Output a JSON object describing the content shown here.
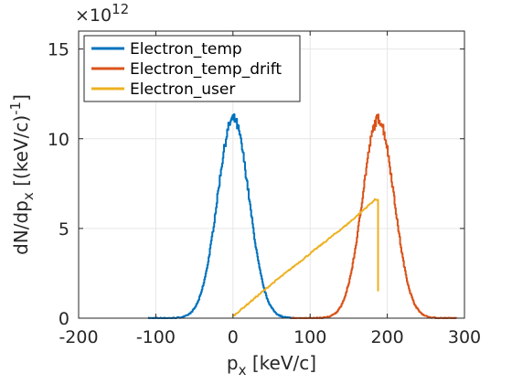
{
  "chart_data": {
    "type": "line",
    "xlabel_main": "p",
    "xlabel_sub": "x",
    "xlabel_rest": " [keV/c]",
    "ylabel_main": "dN/dp",
    "ylabel_sub": "x",
    "ylabel_rest": " [(keV/c)",
    "ylabel_sup": "-1",
    "ylabel_close": "]",
    "y_exponent_base": "×10",
    "y_exponent_power": "12",
    "xlim": [
      -200,
      300
    ],
    "ylim": [
      0,
      16
    ],
    "y_scale": 1000000000000.0,
    "xticks": [
      -200,
      -100,
      0,
      100,
      200,
      300
    ],
    "yticks": [
      0,
      5,
      10,
      15
    ],
    "grid": true,
    "legend_position": "top-left",
    "series": [
      {
        "name": "Electron_temp",
        "color": "#0072BD",
        "shape": "gaussian",
        "mean": 0,
        "sigma": 20.5,
        "peak": 11.1,
        "x_range": [
          -110,
          80
        ]
      },
      {
        "name": "Electron_temp_drift",
        "color": "#D95319",
        "shape": "gaussian",
        "mean": 188,
        "sigma": 20.5,
        "peak": 11.1,
        "x_range": [
          75,
          290
        ]
      },
      {
        "name": "Electron_user",
        "color": "#EDB120",
        "shape": "linear-ramp",
        "points": [
          [
            0,
            0.1
          ],
          [
            50,
            1.9
          ],
          [
            100,
            3.6
          ],
          [
            150,
            5.3
          ],
          [
            180,
            6.45
          ],
          [
            184,
            6.6
          ],
          [
            188,
            6.6
          ],
          [
            188,
            1.5
          ]
        ]
      }
    ]
  }
}
